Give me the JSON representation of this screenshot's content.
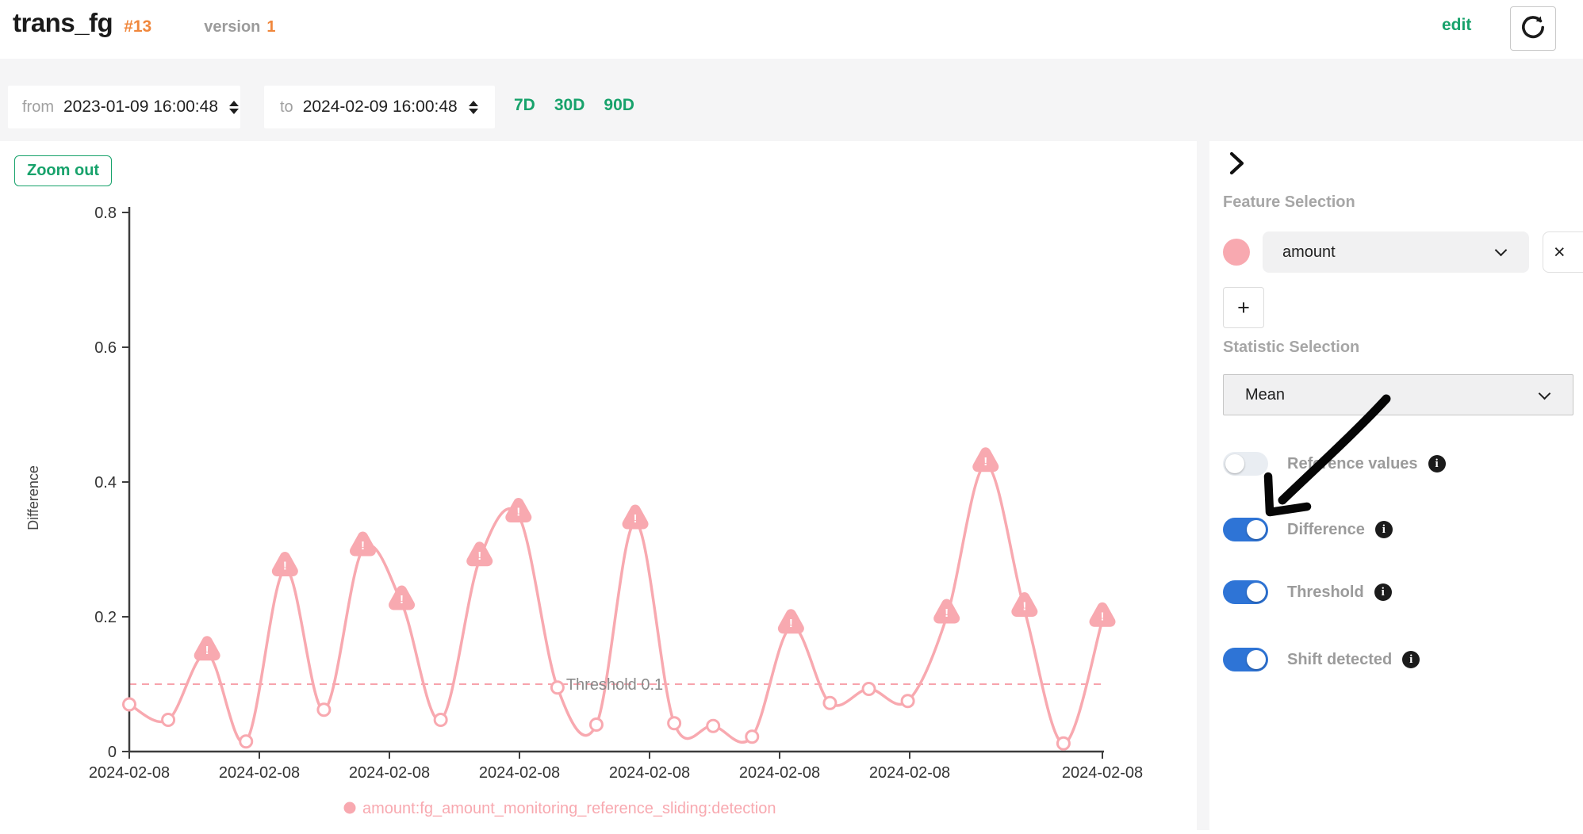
{
  "header": {
    "title": "trans_fg",
    "id_badge": "#13",
    "version_label": "version",
    "version_value": "1",
    "edit_label": "edit"
  },
  "controls": {
    "from_label": "from",
    "from_value": "2023-01-09 16:00:48",
    "to_label": "to",
    "to_value": "2024-02-09 16:00:48",
    "quick_ranges": [
      "7D",
      "30D",
      "90D"
    ]
  },
  "chart": {
    "zoom_out_label": "Zoom out"
  },
  "chart_data": {
    "type": "line",
    "title": "",
    "xlabel": "",
    "ylabel": "Difference",
    "ylim": [
      0,
      0.8
    ],
    "yticks": [
      0,
      0.2,
      0.4,
      0.6,
      0.8
    ],
    "x_tick_labels": [
      "2024-02-08",
      "2024-02-08",
      "2024-02-08",
      "2024-02-08",
      "2024-02-08",
      "2024-02-08",
      "2024-02-08",
      "2024-02-08"
    ],
    "grid": false,
    "legend_position": "bottom",
    "threshold": {
      "value": 0.1,
      "label": "Threshold 0.1",
      "color": "#f7a3ac",
      "label_color": "#8a8a8a"
    },
    "series": [
      {
        "name": "amount:fg_amount_monitoring_reference_sliding:detection",
        "color": "#f8a9b0",
        "values": [
          0.07,
          0.047,
          0.145,
          0.015,
          0.27,
          0.062,
          0.3,
          0.22,
          0.047,
          0.285,
          0.35,
          0.095,
          0.04,
          0.34,
          0.042,
          0.038,
          0.022,
          0.185,
          0.072,
          0.093,
          0.075,
          0.2,
          0.425,
          0.21,
          0.012,
          0.195
        ],
        "shift_detected_indices": [
          2,
          4,
          6,
          7,
          9,
          10,
          13,
          17,
          21,
          22,
          23,
          25
        ]
      }
    ]
  },
  "sidebar": {
    "feature_selection": {
      "heading": "Feature Selection",
      "selected_feature": "amount",
      "swatch_color": "#f8a9b0",
      "remove_label": "×",
      "add_label": "+"
    },
    "statistic_selection": {
      "heading": "Statistic Selection",
      "selected_statistic": "Mean"
    },
    "toggles": [
      {
        "label": "Reference values",
        "state": false
      },
      {
        "label": "Difference",
        "state": true
      },
      {
        "label": "Threshold",
        "state": true
      },
      {
        "label": "Shift detected",
        "state": true
      }
    ],
    "toggle_on_color": "#2e74d6"
  }
}
